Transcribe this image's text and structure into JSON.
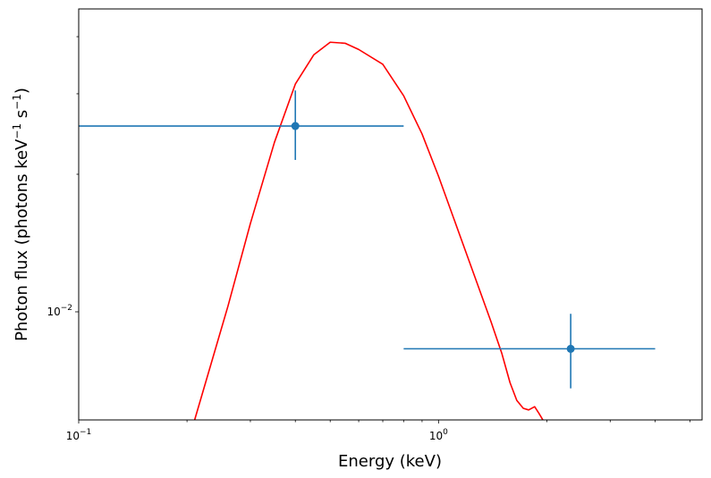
{
  "chart_data": {
    "type": "scatter",
    "xlabel": "Energy (keV)",
    "ylabel": "Photon flux (photons keV$^{-1}$ s$^{-1}$)",
    "xscale": "log",
    "yscale": "log",
    "xlim": [
      0.1,
      5.4
    ],
    "ylim": [
      0.0058,
      0.046
    ],
    "grid": false,
    "x_ticks": [
      {
        "value": 0.1,
        "label": "10",
        "exp": "−1"
      },
      {
        "value": 1.0,
        "label": "10",
        "exp": "0"
      }
    ],
    "y_ticks": [
      {
        "value": 0.01,
        "label": "10",
        "exp": "−2"
      }
    ],
    "colors": {
      "data": "#1f77b4",
      "model": "#ff0000"
    },
    "data_points": [
      {
        "x": 0.4,
        "y": 0.0255,
        "xerr_low": 0.1,
        "xerr_high": 0.8,
        "yerr_low": 0.0215,
        "yerr_high": 0.0305
      },
      {
        "x": 2.33,
        "y": 0.0083,
        "xerr_low": 0.8,
        "xerr_high": 4.0,
        "yerr_low": 0.0068,
        "yerr_high": 0.0099
      }
    ],
    "model_curve": {
      "x": [
        0.21,
        0.26,
        0.3,
        0.35,
        0.4,
        0.45,
        0.5,
        0.55,
        0.6,
        0.7,
        0.8,
        0.9,
        1.0,
        1.2,
        1.4,
        1.5,
        1.58,
        1.65,
        1.72,
        1.78,
        1.85,
        1.9,
        1.95
      ],
      "y": [
        0.0058,
        0.0103,
        0.0156,
        0.0235,
        0.0315,
        0.0365,
        0.0389,
        0.0387,
        0.0375,
        0.0348,
        0.0297,
        0.0245,
        0.0198,
        0.0133,
        0.0095,
        0.0081,
        0.007,
        0.0064,
        0.00615,
        0.0061,
        0.0062,
        0.006,
        0.0058
      ]
    }
  }
}
